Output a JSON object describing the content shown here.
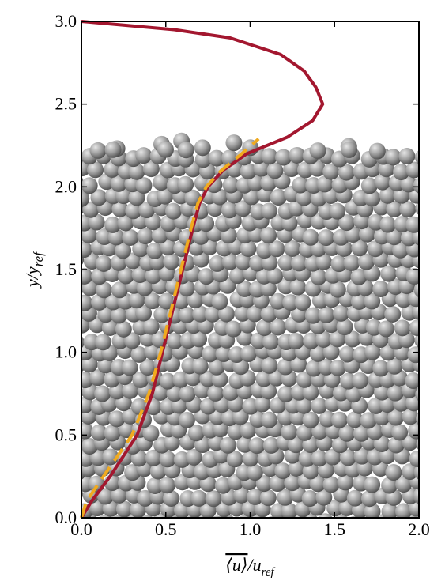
{
  "chart_data": {
    "type": "line",
    "xlabel": [
      "⟨u⟩",
      "/u",
      "ref"
    ],
    "ylabel": [
      "y/y",
      "ref"
    ],
    "xlim": [
      0,
      2
    ],
    "ylim": [
      0,
      3
    ],
    "xticks": [
      {
        "value": 0,
        "label": "0.0"
      },
      0.5,
      {
        "value": 1,
        "label": "1.0"
      },
      1.5,
      {
        "value": 2,
        "label": "2.0"
      }
    ],
    "yticks": [
      {
        "value": 0,
        "label": "0.0"
      },
      0.5,
      {
        "value": 1,
        "label": "1.0"
      },
      1.5,
      {
        "value": 2,
        "label": "2.0"
      },
      2.5,
      {
        "value": 3,
        "label": "3.0"
      }
    ],
    "series": [
      {
        "color": "#a3172f",
        "dashed": false,
        "x": [
          0,
          0.06,
          0.17,
          0.33,
          0.42,
          0.48,
          0.54,
          0.6,
          0.66,
          0.7,
          0.75,
          0.84,
          0.98,
          1.22,
          1.37,
          1.43,
          1.39,
          1.32,
          1.18,
          0.88,
          0.55,
          0
        ],
        "values": [
          0,
          0.1,
          0.25,
          0.5,
          0.75,
          1.0,
          1.25,
          1.5,
          1.75,
          1.9,
          2.0,
          2.1,
          2.2,
          2.3,
          2.4,
          2.5,
          2.6,
          2.7,
          2.8,
          2.9,
          2.95,
          3.0
        ]
      },
      {
        "color": "#f0aa1f",
        "dashed": true,
        "x": [
          0,
          0.03,
          0.13,
          0.3,
          0.4,
          0.47,
          0.53,
          0.59,
          0.65,
          0.69,
          0.74,
          0.83,
          0.95,
          1.05
        ],
        "values": [
          0,
          0.1,
          0.25,
          0.5,
          0.75,
          1.0,
          1.25,
          1.5,
          1.75,
          1.9,
          2.0,
          2.1,
          2.2,
          2.29
        ]
      }
    ]
  }
}
